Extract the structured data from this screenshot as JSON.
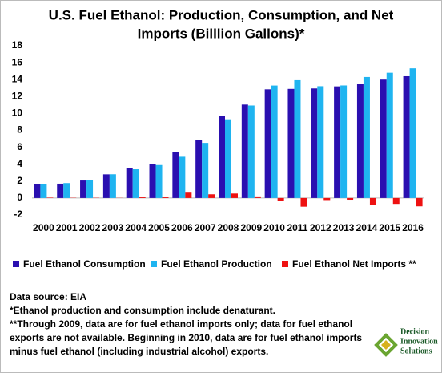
{
  "chart_data": {
    "type": "bar",
    "title": [
      "U.S. Fuel Ethanol: Production, Consumption, and Net",
      "Imports (Billlion Gallons)*"
    ],
    "categories": [
      "2000",
      "2001",
      "2002",
      "2003",
      "2004",
      "2005",
      "2006",
      "2007",
      "2008",
      "2009",
      "2010",
      "2011",
      "2012",
      "2013",
      "2014",
      "2015",
      "2016"
    ],
    "series": [
      {
        "name": "Fuel Ethanol Consumption",
        "color": "#2a0fb0",
        "values": [
          1.65,
          1.7,
          2.07,
          2.8,
          3.55,
          4.05,
          5.45,
          6.9,
          9.7,
          11.05,
          12.85,
          12.9,
          12.95,
          13.2,
          13.45,
          14.0,
          14.4
        ]
      },
      {
        "name": "Fuel Ethanol Production",
        "color": "#1fb4f0",
        "values": [
          1.62,
          1.77,
          2.14,
          2.81,
          3.4,
          3.9,
          4.88,
          6.52,
          9.31,
          10.94,
          13.3,
          13.93,
          13.22,
          13.31,
          14.31,
          14.81,
          15.33
        ]
      },
      {
        "name": "Fuel Ethanol Net Imports **",
        "color": "#ee1111",
        "values": [
          0.05,
          0.03,
          0.03,
          0.02,
          0.15,
          0.14,
          0.73,
          0.44,
          0.53,
          0.19,
          -0.38,
          -1.02,
          -0.24,
          -0.2,
          -0.77,
          -0.69,
          -0.98
        ]
      }
    ],
    "ylim": [
      -2,
      18
    ],
    "yticks": [
      -2,
      0,
      2,
      4,
      6,
      8,
      10,
      12,
      14,
      16,
      18
    ],
    "grid": false,
    "legend": "bottom",
    "notes": [
      "Data source: EIA",
      "*Ethanol production and consumption include denaturant.",
      "**Through 2009, data are for fuel ethanol imports only; data for fuel ethanol",
      "exports are not available. Beginning in 2010, data are for fuel ethanol imports",
      "minus fuel ethanol (including industrial alcohol) exports."
    ],
    "logo": [
      "Decision",
      "Innovation",
      "Solutions"
    ]
  }
}
